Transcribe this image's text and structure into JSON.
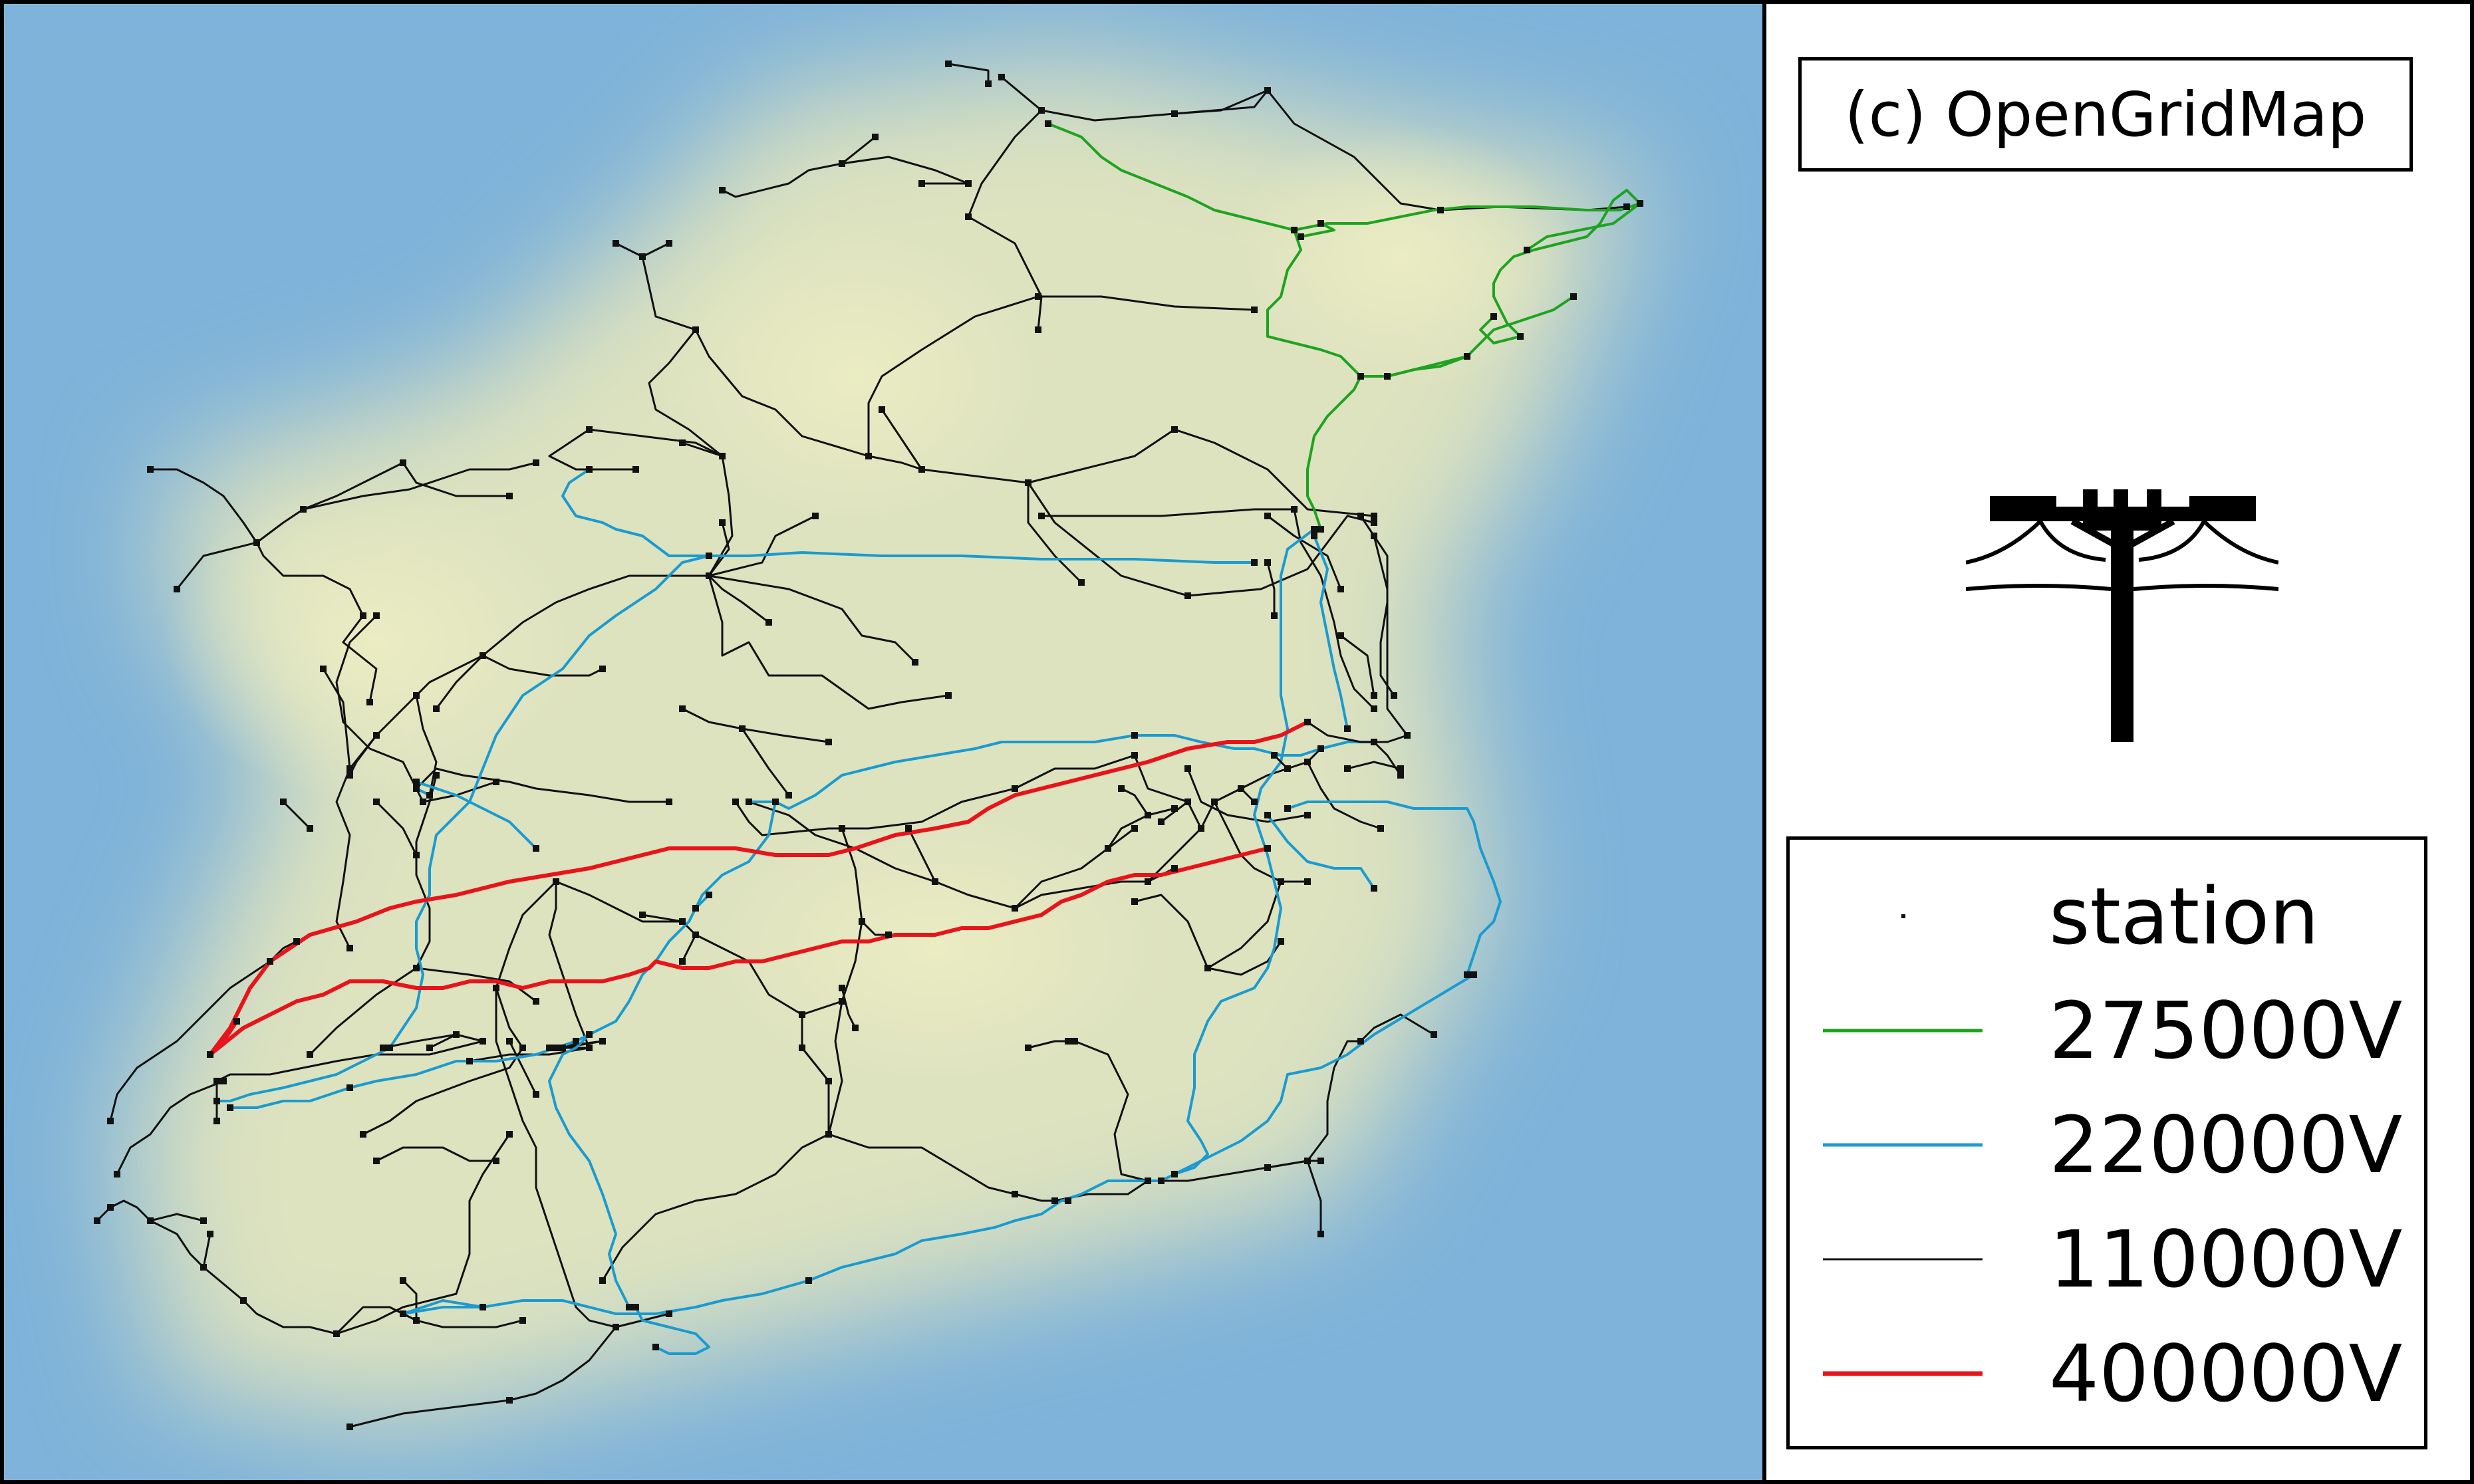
{
  "copyright": "(c) OpenGridMap",
  "icons": {
    "pylon": "power-pylon-icon"
  },
  "colors": {
    "sea": "#7fb3d9",
    "land": "#dfe3c0",
    "land_highlight": "#ecedc2",
    "v400": "#e8141b",
    "v275": "#1ea320",
    "v220": "#1a9bd0",
    "v110": "#111111",
    "station": "#111111"
  },
  "legend": [
    {
      "key": "station",
      "label": "station",
      "color": "#111111"
    },
    {
      "key": "v275",
      "label": "275000V",
      "color": "#1ea320"
    },
    {
      "key": "v220",
      "label": "220000V",
      "color": "#1a9bd0"
    },
    {
      "key": "v110",
      "label": "110000V",
      "color": "#111111"
    },
    {
      "key": "v400",
      "label": "400000V",
      "color": "#e8141b"
    }
  ]
}
